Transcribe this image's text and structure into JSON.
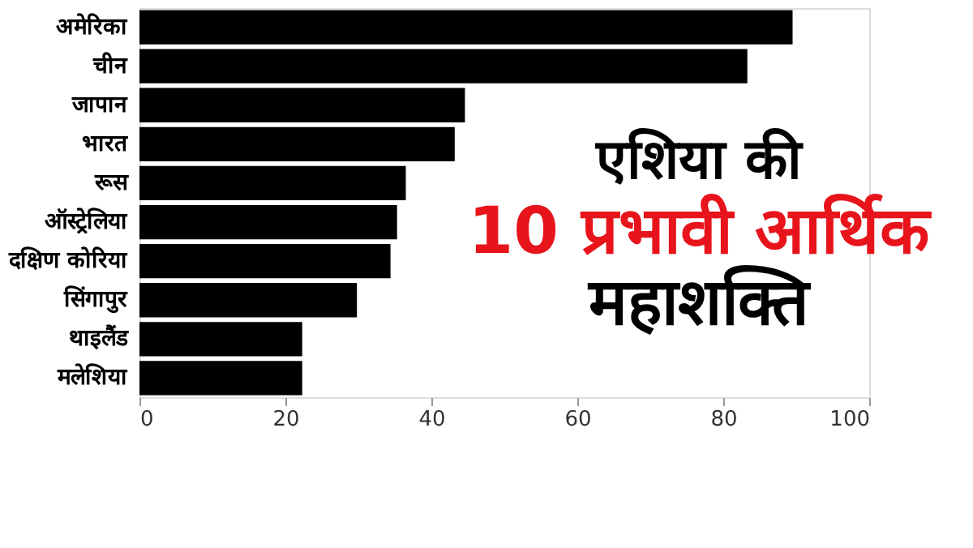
{
  "chart_data": {
    "type": "bar",
    "orientation": "horizontal",
    "title": "एशिया की\n10 प्रभावी आर्थिक\nमहाशक्ति",
    "categories": [
      "अमेरिका",
      "चीन",
      "जापान",
      "भारत",
      "रूस",
      "ऑस्ट्रेलिया",
      "दक्षिण कोरिया",
      "सिंगापुर",
      "थाइलैंड",
      "मलेशिया"
    ],
    "values": [
      89.5,
      83.3,
      44.6,
      43.2,
      36.5,
      35.3,
      34.4,
      29.8,
      22.3,
      22.3
    ],
    "color": "#000000",
    "xlim": [
      0,
      100
    ],
    "xticks": [
      0,
      20,
      40,
      60,
      80,
      100
    ],
    "grid": false
  }
}
